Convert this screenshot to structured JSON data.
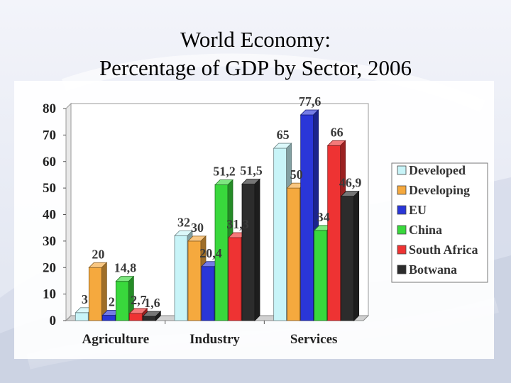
{
  "title_line1": "World Economy:",
  "title_line2": "Percentage of GDP by Sector, 2006",
  "chart_data": {
    "type": "bar",
    "categories": [
      "Agriculture",
      "Industry",
      "Services"
    ],
    "series": [
      {
        "name": "Developed",
        "values": [
          3,
          32,
          65
        ],
        "labels": [
          "3",
          "32",
          "65"
        ],
        "color": "#c8f4f8"
      },
      {
        "name": "Developing",
        "values": [
          20,
          30,
          50
        ],
        "labels": [
          "20",
          "30",
          "50"
        ],
        "color": "#f5a93e"
      },
      {
        "name": "EU",
        "values": [
          2,
          20.4,
          77.6
        ],
        "labels": [
          "2",
          "20,4",
          "77,6"
        ],
        "color": "#2a36d8"
      },
      {
        "name": "China",
        "values": [
          14.8,
          51.2,
          34
        ],
        "labels": [
          "14,8",
          "51,2",
          "34"
        ],
        "color": "#39d83c"
      },
      {
        "name": "South Africa",
        "values": [
          2.7,
          31.3,
          66
        ],
        "labels": [
          "2,7",
          "31,3",
          "66"
        ],
        "color": "#ee3333"
      },
      {
        "name": "Botwana",
        "values": [
          1.6,
          51.5,
          46.9
        ],
        "labels": [
          "1,6",
          "51,5",
          "46,9"
        ],
        "color": "#2c2c2c"
      }
    ],
    "ylim": [
      0,
      80
    ],
    "yticks": [
      0,
      10,
      20,
      30,
      40,
      50,
      60,
      70,
      80
    ],
    "grid": false,
    "legend_position": "right",
    "xlabel": "",
    "ylabel": ""
  }
}
